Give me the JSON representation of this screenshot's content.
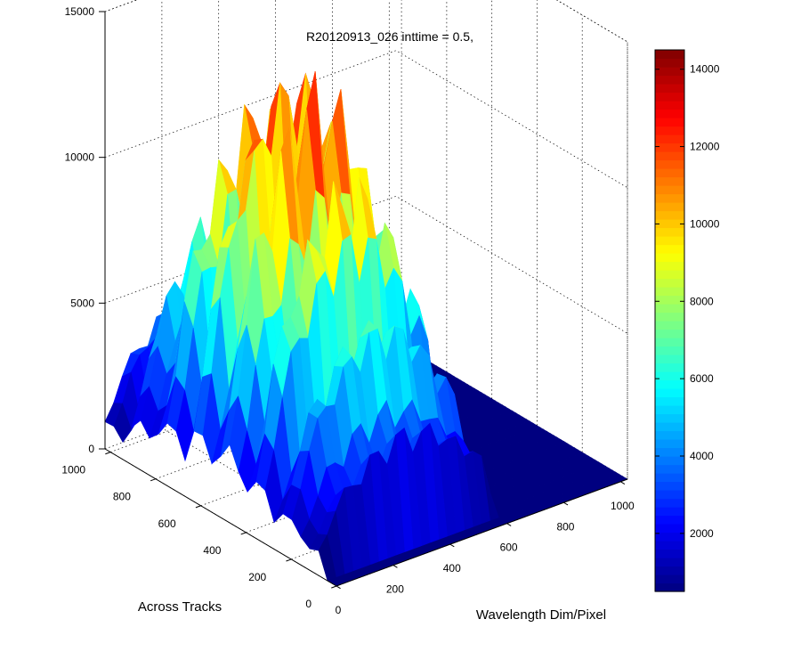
{
  "chart_data": {
    "type": "surface3d",
    "title": "R20120913_026 inttime = 0.5,",
    "xlabel": "Wavelength Dim/Pixel",
    "ylabel": "Across Tracks",
    "zlabel": "",
    "xlim": [
      0,
      1024
    ],
    "ylim": [
      0,
      1024
    ],
    "zlim": [
      0,
      15000
    ],
    "x_ticks": [
      "0",
      "200",
      "400",
      "600",
      "800",
      "1000"
    ],
    "y_ticks": [
      "0",
      "200",
      "400",
      "600",
      "800",
      "1000"
    ],
    "z_ticks": [
      "0",
      "5000",
      "10000",
      "15000"
    ],
    "colorbar": {
      "colormap": "jet",
      "range": [
        500,
        14500
      ],
      "ticks": [
        "2000",
        "4000",
        "6000",
        "8000",
        "10000",
        "12000",
        "14000"
      ]
    },
    "grid": true,
    "peak_value": 14500,
    "nonzero_x_range": [
      0,
      620
    ],
    "nonzero_y_range": [
      50,
      1000
    ]
  }
}
